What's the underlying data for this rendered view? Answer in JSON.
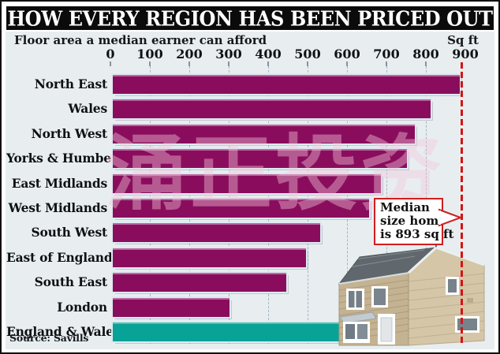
{
  "header": {
    "title": "HOW EVERY REGION HAS BEEN PRICED OUT"
  },
  "chart": {
    "subtitle": "Floor area a median earner can afford",
    "unit_label": "Sq ft",
    "source": "Source: Savills",
    "watermark": "涌正投资",
    "callout": {
      "line1": "Median",
      "line2": "size home",
      "line3": "is 893 sq ft"
    }
  },
  "chart_data": {
    "type": "bar",
    "orientation": "horizontal",
    "title": "HOW EVERY REGION HAS BEEN PRICED OUT",
    "subtitle": "Floor area a median earner can afford",
    "xlabel": "Sq ft",
    "units": "sq ft",
    "categories": [
      "North East",
      "Wales",
      "North West",
      "Yorks & Humber",
      "East Midlands",
      "West Midlands",
      "South West",
      "East of England",
      "South East",
      "London",
      "England & Wales"
    ],
    "values": [
      880,
      805,
      765,
      745,
      680,
      650,
      525,
      490,
      440,
      295,
      585
    ],
    "x_ticks": [
      0,
      100,
      200,
      300,
      400,
      500,
      600,
      700,
      800,
      900
    ],
    "xlim": [
      0,
      940
    ],
    "grid": "dashed-vertical",
    "legend": "none",
    "bar_color": "#8a0d5d",
    "highlight": {
      "category": "England & Wales",
      "color": "#08a296"
    },
    "reference_line": {
      "value": 893,
      "label": "Median size home is 893 sq ft",
      "color": "#d41414",
      "style": "dashed"
    },
    "source": "Source: Savills"
  },
  "colors": {
    "title_bg": "#0b0b0b",
    "title_text": "#ffffff",
    "chart_bg": "#e8edf0",
    "bar_purple": "#8a0d5d",
    "bar_teal": "#08a296",
    "reference_red": "#d41414",
    "gridline": "#a4b6bf"
  }
}
